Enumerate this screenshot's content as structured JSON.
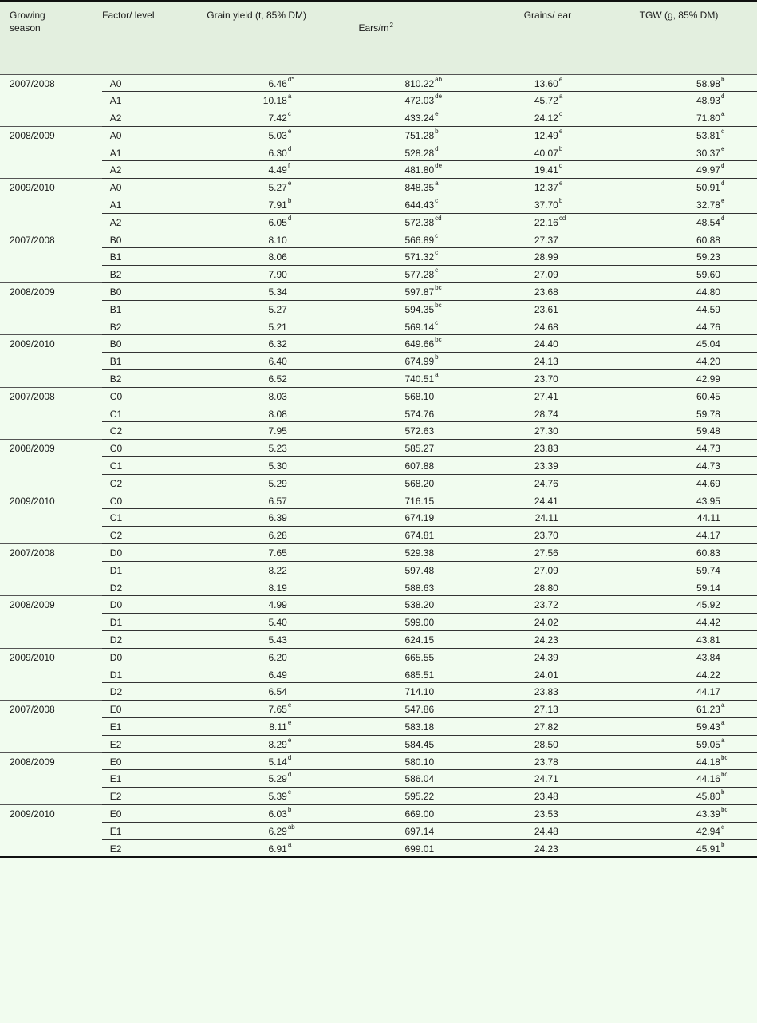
{
  "header": {
    "season": "Growing season",
    "factor": "Factor/ level",
    "grain_yield": "Grain yield (t, 85% DM)",
    "ears": "Ears/m",
    "ears_sup": "2",
    "grains": "Grains/ ear",
    "tgw": "TGW (g, 85% DM)"
  },
  "groups": [
    {
      "season": "2007/2008",
      "rows": [
        {
          "level": "A0",
          "gy": [
            "6.46",
            "d*"
          ],
          "ears": [
            "810.22",
            "ab"
          ],
          "grains": [
            "13.60",
            "e"
          ],
          "tgw": [
            "58.98",
            "b"
          ]
        },
        {
          "level": "A1",
          "gy": [
            "10.18",
            "a"
          ],
          "ears": [
            "472.03",
            "de"
          ],
          "grains": [
            "45.72",
            "a"
          ],
          "tgw": [
            "48.93",
            "d"
          ]
        },
        {
          "level": "A2",
          "gy": [
            "7.42",
            "c"
          ],
          "ears": [
            "433.24",
            "e"
          ],
          "grains": [
            "24.12",
            "c"
          ],
          "tgw": [
            "71.80",
            "a"
          ]
        }
      ]
    },
    {
      "season": "2008/2009",
      "rows": [
        {
          "level": "A0",
          "gy": [
            "5.03",
            "e"
          ],
          "ears": [
            "751.28",
            "b"
          ],
          "grains": [
            "12.49",
            "e"
          ],
          "tgw": [
            "53.81",
            "c"
          ]
        },
        {
          "level": "A1",
          "gy": [
            "6.30",
            "d"
          ],
          "ears": [
            "528.28",
            "d"
          ],
          "grains": [
            "40.07",
            "b"
          ],
          "tgw": [
            "30.37",
            "e"
          ]
        },
        {
          "level": "A2",
          "gy": [
            "4.49",
            "f"
          ],
          "ears": [
            "481.80",
            "de"
          ],
          "grains": [
            "19.41",
            "d"
          ],
          "tgw": [
            "49.97",
            "d"
          ]
        }
      ]
    },
    {
      "season": "2009/2010",
      "rows": [
        {
          "level": "A0",
          "gy": [
            "5.27",
            "e"
          ],
          "ears": [
            "848.35",
            "a"
          ],
          "grains": [
            "12.37",
            "e"
          ],
          "tgw": [
            "50.91",
            "d"
          ]
        },
        {
          "level": "A1",
          "gy": [
            "7.91",
            "b"
          ],
          "ears": [
            "644.43",
            "c"
          ],
          "grains": [
            "37.70",
            "b"
          ],
          "tgw": [
            "32.78",
            "e"
          ]
        },
        {
          "level": "A2",
          "gy": [
            "6.05",
            "d"
          ],
          "ears": [
            "572.38",
            "cd"
          ],
          "grains": [
            "22.16",
            "cd"
          ],
          "tgw": [
            "48.54",
            "d"
          ]
        }
      ]
    },
    {
      "season": "2007/2008",
      "rows": [
        {
          "level": "B0",
          "gy": [
            "8.10",
            ""
          ],
          "ears": [
            "566.89",
            "c"
          ],
          "grains": [
            "27.37",
            ""
          ],
          "tgw": [
            "60.88",
            ""
          ]
        },
        {
          "level": "B1",
          "gy": [
            "8.06",
            ""
          ],
          "ears": [
            "571.32",
            "c"
          ],
          "grains": [
            "28.99",
            ""
          ],
          "tgw": [
            "59.23",
            ""
          ]
        },
        {
          "level": "B2",
          "gy": [
            "7.90",
            ""
          ],
          "ears": [
            "577.28",
            "c"
          ],
          "grains": [
            "27.09",
            ""
          ],
          "tgw": [
            "59.60",
            ""
          ]
        }
      ]
    },
    {
      "season": "2008/2009",
      "rows": [
        {
          "level": "B0",
          "gy": [
            "5.34",
            ""
          ],
          "ears": [
            "597.87",
            "bc"
          ],
          "grains": [
            "23.68",
            ""
          ],
          "tgw": [
            "44.80",
            ""
          ]
        },
        {
          "level": "B1",
          "gy": [
            "5.27",
            ""
          ],
          "ears": [
            "594.35",
            "bc"
          ],
          "grains": [
            "23.61",
            ""
          ],
          "tgw": [
            "44.59",
            ""
          ]
        },
        {
          "level": "B2",
          "gy": [
            "5.21",
            ""
          ],
          "ears": [
            "569.14",
            "c"
          ],
          "grains": [
            "24.68",
            ""
          ],
          "tgw": [
            "44.76",
            ""
          ]
        }
      ]
    },
    {
      "season": "2009/2010",
      "rows": [
        {
          "level": "B0",
          "gy": [
            "6.32",
            ""
          ],
          "ears": [
            "649.66",
            "bc"
          ],
          "grains": [
            "24.40",
            ""
          ],
          "tgw": [
            "45.04",
            ""
          ]
        },
        {
          "level": "B1",
          "gy": [
            "6.40",
            ""
          ],
          "ears": [
            "674.99",
            "b"
          ],
          "grains": [
            "24.13",
            ""
          ],
          "tgw": [
            "44.20",
            ""
          ]
        },
        {
          "level": "B2",
          "gy": [
            "6.52",
            ""
          ],
          "ears": [
            "740.51",
            "a"
          ],
          "grains": [
            "23.70",
            ""
          ],
          "tgw": [
            "42.99",
            ""
          ]
        }
      ]
    },
    {
      "season": "2007/2008",
      "rows": [
        {
          "level": "C0",
          "gy": [
            "8.03",
            ""
          ],
          "ears": [
            "568.10",
            ""
          ],
          "grains": [
            "27.41",
            ""
          ],
          "tgw": [
            "60.45",
            ""
          ]
        },
        {
          "level": "C1",
          "gy": [
            "8.08",
            ""
          ],
          "ears": [
            "574.76",
            ""
          ],
          "grains": [
            "28.74",
            ""
          ],
          "tgw": [
            "59.78",
            ""
          ]
        },
        {
          "level": "C2",
          "gy": [
            "7.95",
            ""
          ],
          "ears": [
            "572.63",
            ""
          ],
          "grains": [
            "27.30",
            ""
          ],
          "tgw": [
            "59.48",
            ""
          ]
        }
      ]
    },
    {
      "season": "2008/2009",
      "rows": [
        {
          "level": "C0",
          "gy": [
            "5.23",
            ""
          ],
          "ears": [
            "585.27",
            ""
          ],
          "grains": [
            "23.83",
            ""
          ],
          "tgw": [
            "44.73",
            ""
          ]
        },
        {
          "level": "C1",
          "gy": [
            "5.30",
            ""
          ],
          "ears": [
            "607.88",
            ""
          ],
          "grains": [
            "23.39",
            ""
          ],
          "tgw": [
            "44.73",
            ""
          ]
        },
        {
          "level": "C2",
          "gy": [
            "5.29",
            ""
          ],
          "ears": [
            "568.20",
            ""
          ],
          "grains": [
            "24.76",
            ""
          ],
          "tgw": [
            "44.69",
            ""
          ]
        }
      ]
    },
    {
      "season": "2009/2010",
      "rows": [
        {
          "level": "C0",
          "gy": [
            "6.57",
            ""
          ],
          "ears": [
            "716.15",
            ""
          ],
          "grains": [
            "24.41",
            ""
          ],
          "tgw": [
            "43.95",
            ""
          ]
        },
        {
          "level": "C1",
          "gy": [
            "6.39",
            ""
          ],
          "ears": [
            "674.19",
            ""
          ],
          "grains": [
            "24.11",
            ""
          ],
          "tgw": [
            "44.11",
            ""
          ]
        },
        {
          "level": "C2",
          "gy": [
            "6.28",
            ""
          ],
          "ears": [
            "674.81",
            ""
          ],
          "grains": [
            "23.70",
            ""
          ],
          "tgw": [
            "44.17",
            ""
          ]
        }
      ]
    },
    {
      "season": "2007/2008",
      "rows": [
        {
          "level": "D0",
          "gy": [
            "7.65",
            ""
          ],
          "ears": [
            "529.38",
            ""
          ],
          "grains": [
            "27.56",
            ""
          ],
          "tgw": [
            "60.83",
            ""
          ]
        },
        {
          "level": "D1",
          "gy": [
            "8.22",
            ""
          ],
          "ears": [
            "597.48",
            ""
          ],
          "grains": [
            "27.09",
            ""
          ],
          "tgw": [
            "59.74",
            ""
          ]
        },
        {
          "level": "D2",
          "gy": [
            "8.19",
            ""
          ],
          "ears": [
            "588.63",
            ""
          ],
          "grains": [
            "28.80",
            ""
          ],
          "tgw": [
            "59.14",
            ""
          ]
        }
      ]
    },
    {
      "season": "2008/2009",
      "rows": [
        {
          "level": "D0",
          "gy": [
            "4.99",
            ""
          ],
          "ears": [
            "538.20",
            ""
          ],
          "grains": [
            "23.72",
            ""
          ],
          "tgw": [
            "45.92",
            ""
          ]
        },
        {
          "level": "D1",
          "gy": [
            "5.40",
            ""
          ],
          "ears": [
            "599.00",
            ""
          ],
          "grains": [
            "24.02",
            ""
          ],
          "tgw": [
            "44.42",
            ""
          ]
        },
        {
          "level": "D2",
          "gy": [
            "5.43",
            ""
          ],
          "ears": [
            "624.15",
            ""
          ],
          "grains": [
            "24.23",
            ""
          ],
          "tgw": [
            "43.81",
            ""
          ]
        }
      ]
    },
    {
      "season": "2009/2010",
      "rows": [
        {
          "level": "D0",
          "gy": [
            "6.20",
            ""
          ],
          "ears": [
            "665.55",
            ""
          ],
          "grains": [
            "24.39",
            ""
          ],
          "tgw": [
            "43.84",
            ""
          ]
        },
        {
          "level": "D1",
          "gy": [
            "6.49",
            ""
          ],
          "ears": [
            "685.51",
            ""
          ],
          "grains": [
            "24.01",
            ""
          ],
          "tgw": [
            "44.22",
            ""
          ]
        },
        {
          "level": "D2",
          "gy": [
            "6.54",
            ""
          ],
          "ears": [
            "714.10",
            ""
          ],
          "grains": [
            "23.83",
            ""
          ],
          "tgw": [
            "44.17",
            ""
          ]
        }
      ]
    },
    {
      "season": "2007/2008",
      "rows": [
        {
          "level": "E0",
          "gy": [
            "7.65",
            "e"
          ],
          "ears": [
            "547.86",
            ""
          ],
          "grains": [
            "27.13",
            ""
          ],
          "tgw": [
            "61.23",
            "a"
          ]
        },
        {
          "level": "E1",
          "gy": [
            "8.11",
            "e"
          ],
          "ears": [
            "583.18",
            ""
          ],
          "grains": [
            "27.82",
            ""
          ],
          "tgw": [
            "59.43",
            "a"
          ]
        },
        {
          "level": "E2",
          "gy": [
            "8.29",
            "e"
          ],
          "ears": [
            "584.45",
            ""
          ],
          "grains": [
            "28.50",
            ""
          ],
          "tgw": [
            "59.05",
            "a"
          ]
        }
      ]
    },
    {
      "season": "2008/2009",
      "rows": [
        {
          "level": "E0",
          "gy": [
            "5.14",
            "d"
          ],
          "ears": [
            "580.10",
            ""
          ],
          "grains": [
            "23.78",
            ""
          ],
          "tgw": [
            "44.18",
            "bc"
          ]
        },
        {
          "level": "E1",
          "gy": [
            "5.29",
            "d"
          ],
          "ears": [
            "586.04",
            ""
          ],
          "grains": [
            "24.71",
            ""
          ],
          "tgw": [
            "44.16",
            "bc"
          ]
        },
        {
          "level": "E2",
          "gy": [
            "5.39",
            "c"
          ],
          "ears": [
            "595.22",
            ""
          ],
          "grains": [
            "23.48",
            ""
          ],
          "tgw": [
            "45.80",
            "b"
          ]
        }
      ]
    },
    {
      "season": "2009/2010",
      "rows": [
        {
          "level": "E0",
          "gy": [
            "6.03",
            "b"
          ],
          "ears": [
            "669.00",
            ""
          ],
          "grains": [
            "23.53",
            ""
          ],
          "tgw": [
            "43.39",
            "bc"
          ]
        },
        {
          "level": "E1",
          "gy": [
            "6.29",
            "ab"
          ],
          "ears": [
            "697.14",
            ""
          ],
          "grains": [
            "24.48",
            ""
          ],
          "tgw": [
            "42.94",
            "c"
          ]
        },
        {
          "level": "E2",
          "gy": [
            "6.91",
            "a"
          ],
          "ears": [
            "699.01",
            ""
          ],
          "grains": [
            "24.23",
            ""
          ],
          "tgw": [
            "45.91",
            "b"
          ]
        }
      ]
    }
  ]
}
